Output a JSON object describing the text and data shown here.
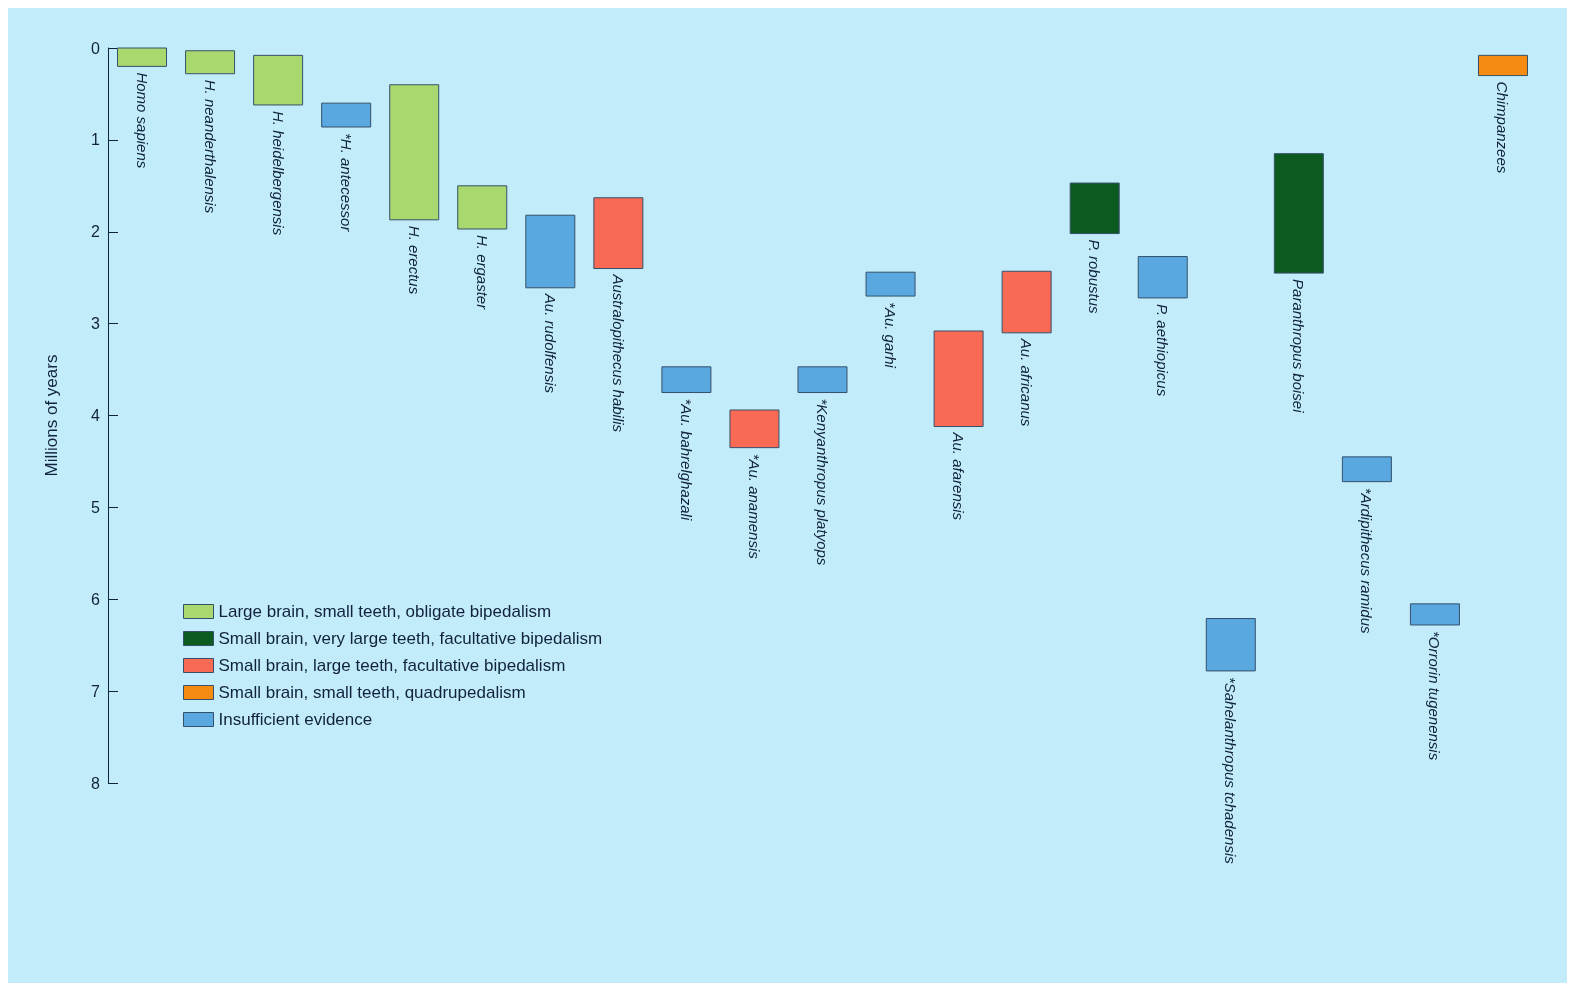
{
  "chart_data": {
    "type": "bar",
    "ylabel": "Millions of years",
    "ylim": [
      8,
      0
    ],
    "yticks": [
      0,
      1,
      2,
      3,
      4,
      5,
      6,
      7,
      8
    ],
    "tick_labels": "y",
    "grid": false,
    "legend": "bottom left",
    "categories": [
      "Homo sapiens",
      "H. neanderthalensis",
      "H. heidelbergensis",
      "*H. antecessor",
      "H. erectus",
      "H. ergaster",
      "Au. rudolfensis",
      "Australopithecus habilis",
      "*Au. bahrelghazali",
      "*Au. anamensis",
      "*Kenyanthropus platyops",
      "*Au. garhi",
      "Au. afarensis",
      "Au. africanus",
      "P. robustus",
      "P. aethiopicus",
      "*Sahelanthropus tchadensis",
      "Paranthropus boisei",
      "*Ardipithecus ramidus",
      "*Orrorin tugenensis",
      "Chimpanzees"
    ],
    "series": [
      {
        "name": "Large brain, small teeth, obligate bipedalism",
        "color": "#a8d86e",
        "base": [
          0,
          0.03,
          0.08,
          null,
          0.4,
          1.5,
          null,
          null,
          null,
          null,
          null,
          null,
          null,
          null,
          null,
          null,
          null,
          null,
          null,
          null,
          null
        ],
        "values": [
          0.2,
          0.25,
          0.54,
          null,
          1.47,
          0.47,
          null,
          null,
          null,
          null,
          null,
          null,
          null,
          null,
          null,
          null,
          null,
          null,
          null,
          null,
          null
        ]
      },
      {
        "name": "Small brain, very large teeth, facultative bipedalism",
        "color": "#0b5b1e",
        "base": [
          null,
          null,
          null,
          null,
          null,
          null,
          null,
          null,
          null,
          null,
          null,
          null,
          null,
          null,
          1.47,
          null,
          null,
          1.15,
          null,
          null,
          null
        ],
        "values": [
          null,
          null,
          null,
          null,
          null,
          null,
          null,
          null,
          null,
          null,
          null,
          null,
          null,
          null,
          0.55,
          null,
          null,
          1.3,
          null,
          null,
          null
        ]
      },
      {
        "name": "Small brain, large teeth, facultative bipedalism",
        "color": "#f96a55",
        "base": [
          null,
          null,
          null,
          null,
          null,
          null,
          null,
          1.63,
          null,
          3.94,
          null,
          null,
          3.08,
          2.43,
          null,
          null,
          null,
          null,
          null,
          null,
          null
        ],
        "values": [
          null,
          null,
          null,
          null,
          null,
          null,
          null,
          0.77,
          null,
          0.41,
          null,
          null,
          1.04,
          0.67,
          null,
          null,
          null,
          null,
          null,
          null,
          null
        ]
      },
      {
        "name": "Small brain, small teeth, quadrupedalism",
        "color": "#f58b10",
        "base": [
          null,
          null,
          null,
          null,
          null,
          null,
          null,
          null,
          null,
          null,
          null,
          null,
          null,
          null,
          null,
          null,
          null,
          null,
          null,
          null,
          0.08
        ],
        "values": [
          null,
          null,
          null,
          null,
          null,
          null,
          null,
          null,
          null,
          null,
          null,
          null,
          null,
          null,
          null,
          null,
          null,
          null,
          null,
          null,
          0.22
        ]
      },
      {
        "name": "Insufficient evidence",
        "color": "#5aa8e0",
        "base": [
          null,
          null,
          null,
          0.6,
          null,
          null,
          1.82,
          null,
          3.47,
          null,
          3.47,
          2.44,
          null,
          null,
          null,
          2.27,
          6.21,
          null,
          4.45,
          6.05,
          null
        ],
        "values": [
          null,
          null,
          null,
          0.26,
          null,
          null,
          0.79,
          null,
          0.28,
          null,
          0.28,
          0.26,
          null,
          null,
          null,
          0.45,
          0.57,
          null,
          0.27,
          0.23,
          null
        ]
      }
    ]
  }
}
